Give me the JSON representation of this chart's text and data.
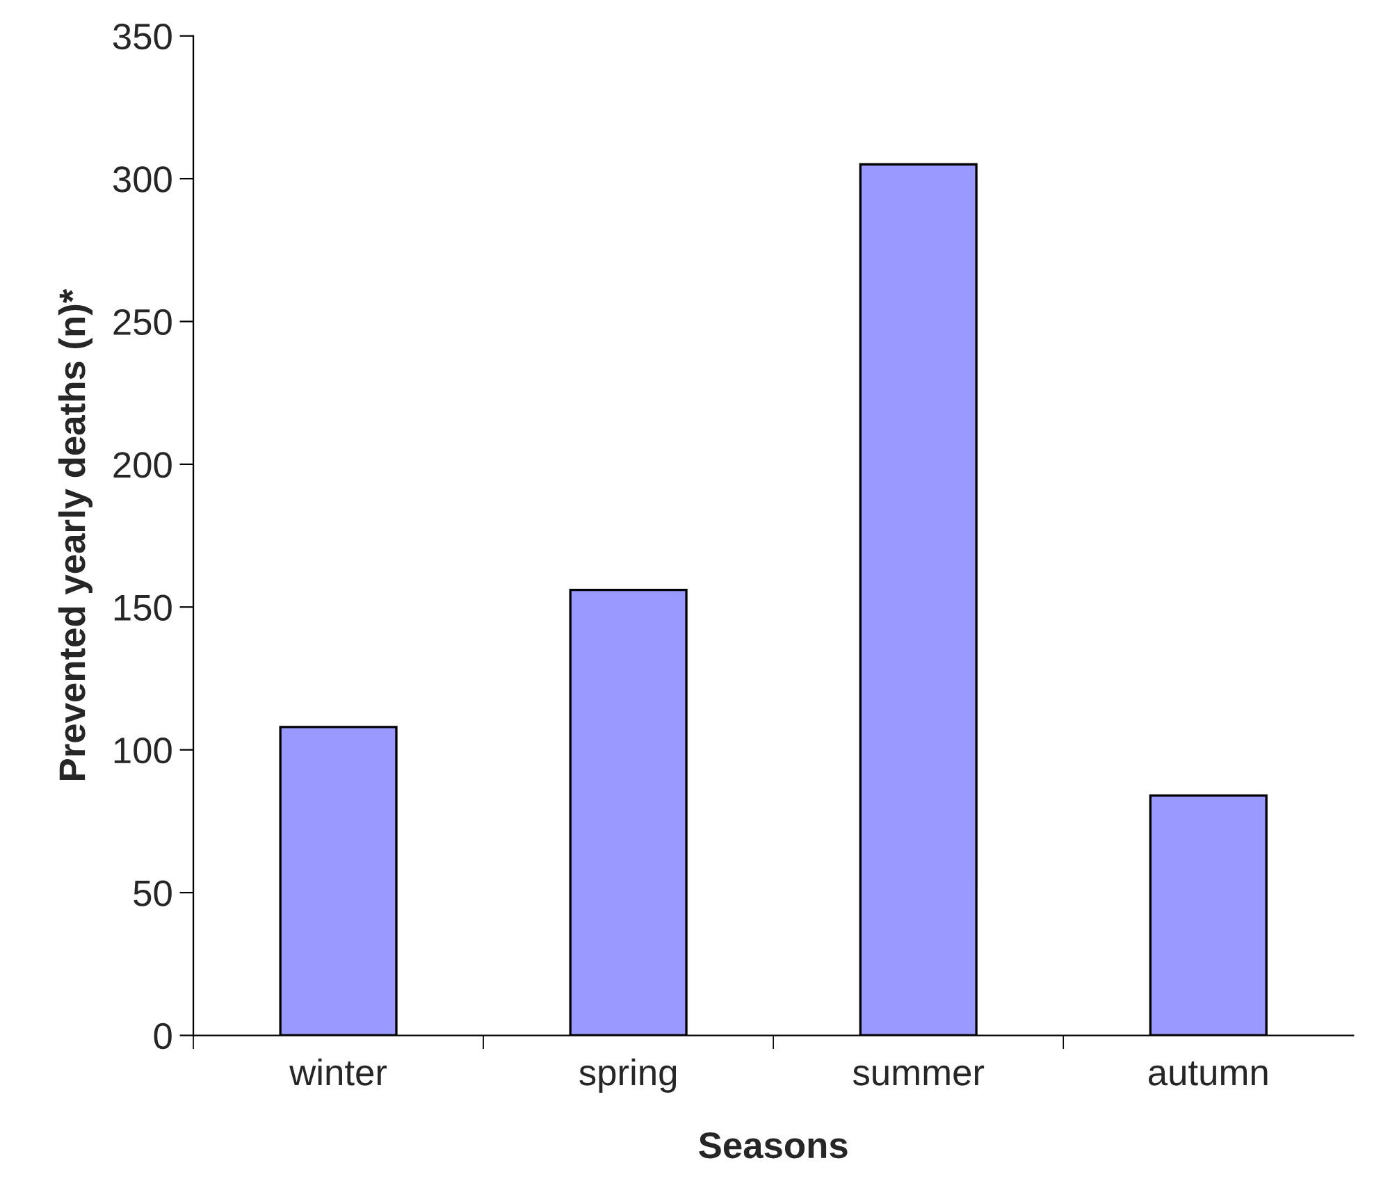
{
  "chart_data": {
    "type": "bar",
    "xlabel": "Seasons",
    "ylabel": "Prevented yearly deaths (n)*",
    "categories": [
      "winter",
      "spring",
      "summer",
      "autumn"
    ],
    "values": [
      108,
      156,
      305,
      84
    ],
    "color": "#9999ff",
    "ylim": [
      0,
      350
    ],
    "yticks": [
      0,
      50,
      100,
      150,
      200,
      250,
      300,
      350
    ],
    "grid": false
  }
}
